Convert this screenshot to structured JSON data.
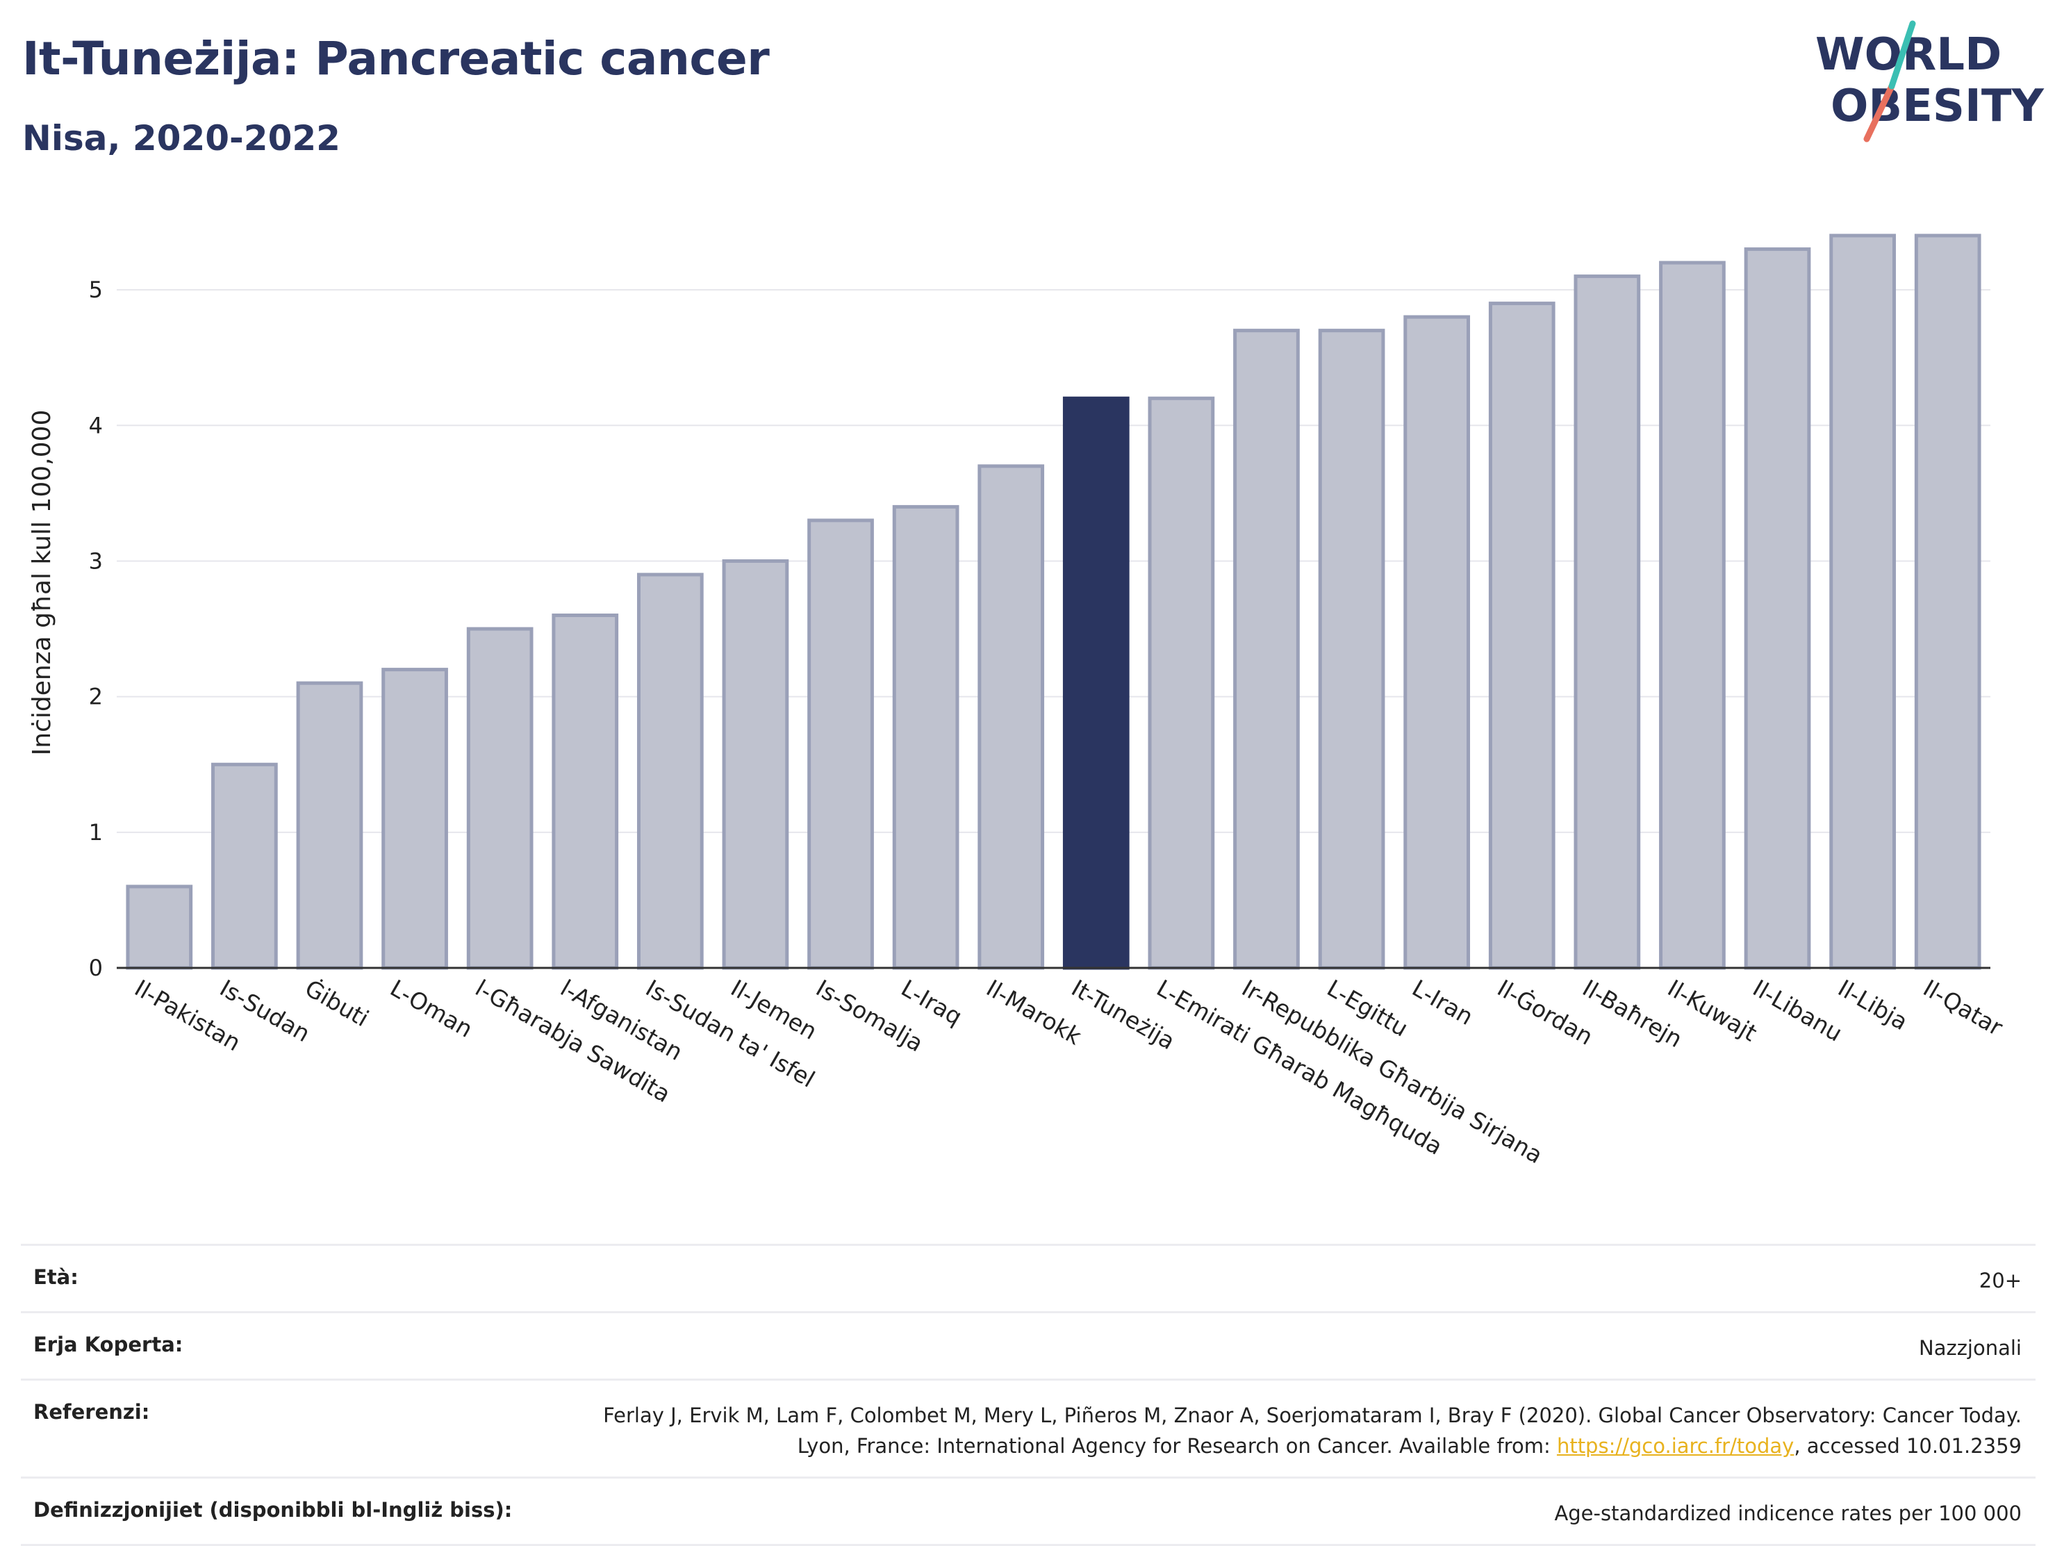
{
  "header": {
    "title": "It-Tuneżija: Pancreatic cancer",
    "subtitle": "Nisa, 2020-2022"
  },
  "logo": {
    "line1": "WORLD",
    "line2": "OBESITY"
  },
  "chart_data": {
    "type": "bar",
    "title": "It-Tuneżija: Pancreatic cancer",
    "subtitle": "Nisa, 2020-2022",
    "ylabel": "Inċidenza għal kull 100,000",
    "xlabel": "",
    "ylim": [
      0,
      5.6
    ],
    "yticks": [
      0,
      1,
      2,
      3,
      4,
      5
    ],
    "grid": true,
    "highlight": "It-Tuneżija",
    "colors": {
      "bar": "#bfc2cf",
      "bar_edge": "#9aa0b8",
      "highlight": "#2a3560"
    },
    "categories": [
      "Il-Pakistan",
      "Is-Sudan",
      "Ġibuti",
      "L-Oman",
      "l-Għarabja Sawdita",
      "l-Afganistan",
      "Is-Sudan ta' Isfel",
      "Il-Jemen",
      "Is-Somalja",
      "L-Iraq",
      "Il-Marokk",
      "It-Tuneżija",
      "L-Emirati Għarab Magħquda",
      "Ir-Repubblika Għarbija Sirjana",
      "L-Egittu",
      "L-Iran",
      "Il-Ġordan",
      "Il-Baħrejn",
      "Il-Kuwajt",
      "Il-Libanu",
      "Il-Libja",
      "Il-Qatar"
    ],
    "values": [
      0.6,
      1.5,
      2.1,
      2.2,
      2.5,
      2.6,
      2.9,
      3.0,
      3.3,
      3.4,
      3.7,
      4.2,
      4.2,
      4.7,
      4.7,
      4.8,
      4.9,
      5.1,
      5.2,
      5.3,
      5.4,
      5.4
    ]
  },
  "info": {
    "age_label": "Età:",
    "age_value": "20+",
    "area_label": "Erja Koperta:",
    "area_value": "Nazzjonali",
    "ref_label": "Referenzi:",
    "ref_text1": "Ferlay J, Ervik M, Lam F, Colombet M, Mery L, Piñeros M, Znaor A, Soerjomataram I, Bray F (2020). Global Cancer Observatory: Cancer Today. Lyon, France: International Agency for Research on Cancer. Available from: ",
    "ref_link": "https://gco.iarc.fr/today",
    "ref_text2": ", accessed 10.01.2359",
    "def_label": "Definizzjonijiet (disponibbli bl-Ingliż biss):",
    "def_value": "Age-standardized indicence rates per 100 000"
  }
}
